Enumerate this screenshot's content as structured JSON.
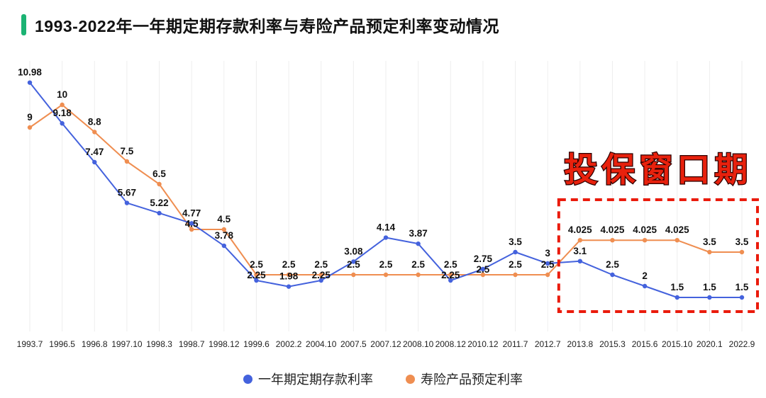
{
  "header": {
    "title": "1993-2022年一年期定期存款利率与寿险产品预定利率变动情况",
    "accent_color": "#1bb373"
  },
  "chart_data": {
    "type": "line",
    "categories": [
      "1993.7",
      "1996.5",
      "1996.8",
      "1997.10",
      "1998.3",
      "1998.7",
      "1998.12",
      "1999.6",
      "2002.2",
      "2004.10",
      "2007.5",
      "2007.12",
      "2008.10",
      "2008.12",
      "2010.12",
      "2011.7",
      "2012.7",
      "2013.8",
      "2015.3",
      "2015.6",
      "2015.10",
      "2020.1",
      "2022.9"
    ],
    "series": [
      {
        "name": "一年期定期存款利率",
        "color": "#4462dd",
        "values": [
          10.98,
          9.18,
          7.47,
          5.67,
          5.22,
          4.77,
          3.78,
          2.25,
          1.98,
          2.25,
          3.08,
          4.14,
          3.87,
          2.25,
          2.75,
          3.5,
          3,
          3.1,
          2.5,
          2,
          1.5,
          1.5,
          1.5
        ]
      },
      {
        "name": "寿险产品预定利率",
        "color": "#ef8e51",
        "values": [
          9,
          10,
          8.8,
          7.5,
          6.5,
          4.5,
          4.5,
          2.5,
          2.5,
          2.5,
          2.5,
          2.5,
          2.5,
          2.5,
          2.5,
          2.5,
          2.5,
          4.025,
          4.025,
          4.025,
          4.025,
          3.5,
          3.5
        ]
      }
    ],
    "title": "1993-2022年一年期定期存款利率与寿险产品预定利率变动情况",
    "xlabel": "",
    "ylabel": "",
    "ylim": [
      0,
      12
    ],
    "grid": "vertical-light",
    "legend_position": "bottom",
    "annotation": {
      "text": "投保窗口期",
      "text_color": "#e8210d",
      "box_color": "#ea1b0c",
      "box_from_category": "2013.8",
      "box_to_category": "2022.9"
    }
  },
  "legend": {
    "items": [
      {
        "label": "一年期定期存款利率",
        "color": "#4462dd"
      },
      {
        "label": "寿险产品预定利率",
        "color": "#ef8e51"
      }
    ]
  }
}
